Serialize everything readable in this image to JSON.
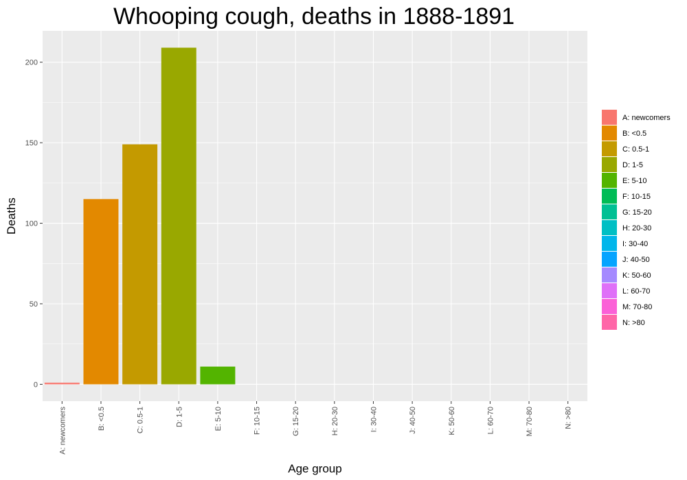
{
  "chart_data": {
    "type": "bar",
    "title": "Whooping cough, deaths in 1888-1891",
    "xlabel": "Age group",
    "ylabel": "Deaths",
    "categories": [
      "A: newcomers",
      "B: <0.5",
      "C: 0.5-1",
      "D: 1-5",
      "E: 5-10",
      "F: 10-15",
      "G: 15-20",
      "H: 20-30",
      "I: 30-40",
      "J: 40-50",
      "K: 50-60",
      "L: 60-70",
      "M: 70-80",
      "N: >80"
    ],
    "values": [
      1,
      115,
      149,
      209,
      11,
      0,
      0,
      0,
      0,
      0,
      0,
      0,
      0,
      0
    ],
    "colors": [
      "#F8766D",
      "#E38900",
      "#C49A00",
      "#99A800",
      "#53B400",
      "#00BC56",
      "#00C094",
      "#00BFC4",
      "#00B6EB",
      "#06A4FF",
      "#A58AFF",
      "#DF70F8",
      "#FB61D7",
      "#FF66A8"
    ],
    "yticks": [
      0,
      50,
      100,
      150,
      200
    ],
    "ylim": [
      -10.45,
      219.45
    ],
    "grid": true,
    "legend": {
      "placement": "right",
      "entries": [
        "A: newcomers",
        "B: <0.5",
        "C: 0.5-1",
        "D: 1-5",
        "E: 5-10",
        "F: 10-15",
        "G: 15-20",
        "H: 20-30",
        "I: 30-40",
        "J: 40-50",
        "K: 50-60",
        "L: 60-70",
        "M: 70-80",
        "N: >80"
      ]
    },
    "panel_background": "#EBEBEB",
    "grid_color": "#FFFFFF"
  }
}
